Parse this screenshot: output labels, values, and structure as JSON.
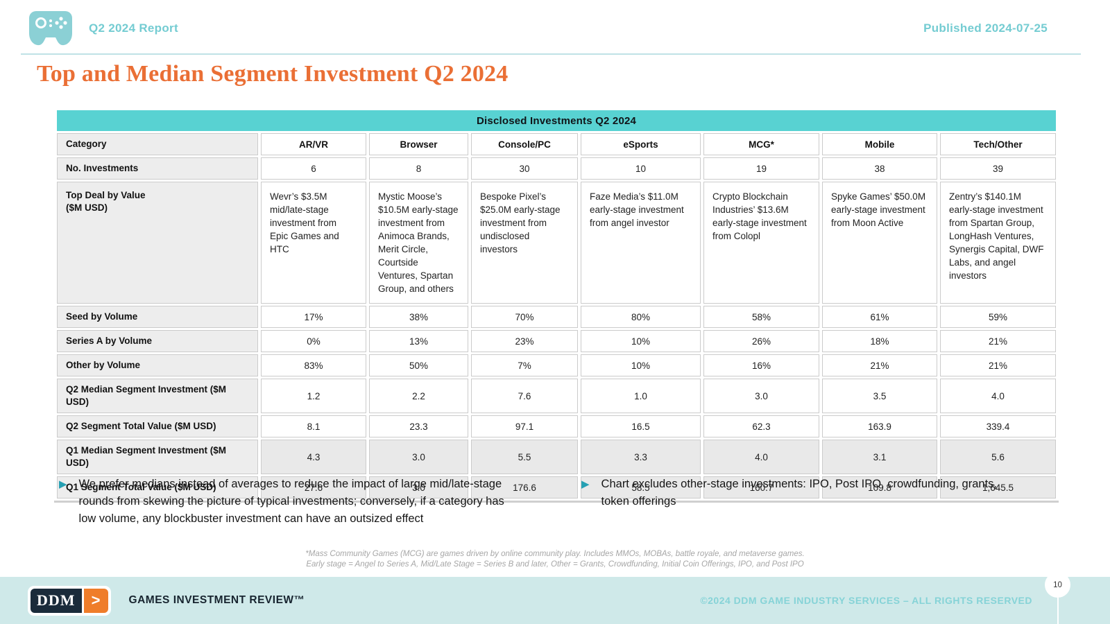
{
  "header": {
    "report_label": "Q2 2024 Report",
    "published": "Published 2024-07-25"
  },
  "page": {
    "title": "Top and Median Segment Investment Q2 2024",
    "number": "10"
  },
  "table": {
    "title": "Disclosed Investments Q2 2024",
    "category_header": "Category",
    "columns": [
      "AR/VR",
      "Browser",
      "Console/PC",
      "eSports",
      "MCG*",
      "Mobile",
      "Tech/Other"
    ],
    "rows": [
      {
        "label": "No. Investments",
        "align": "center",
        "shaded": false,
        "values": [
          "6",
          "8",
          "30",
          "10",
          "19",
          "38",
          "39"
        ]
      },
      {
        "label": "Top Deal by Value\n($M USD)",
        "align": "left",
        "shaded": false,
        "values": [
          "Wevr’s $3.5M mid/late-stage investment from Epic Games and HTC",
          "Mystic Moose’s $10.5M early-stage investment from Animoca Brands, Merit Circle, Courtside Ventures, Spartan Group, and others",
          "Bespoke Pixel’s $25.0M early-stage investment from undisclosed investors",
          "Faze Media’s $11.0M early-stage investment from angel investor",
          "Crypto Blockchain Industries’ $13.6M early-stage investment from Colopl",
          "Spyke Games’ $50.0M early-stage investment from Moon Active",
          "Zentry’s $140.1M early-stage investment from Spartan Group, LongHash Ventures, Synergis Capital, DWF Labs, and angel investors"
        ]
      },
      {
        "label": "Seed by Volume",
        "align": "center",
        "shaded": false,
        "values": [
          "17%",
          "38%",
          "70%",
          "80%",
          "58%",
          "61%",
          "59%"
        ]
      },
      {
        "label": "Series A by Volume",
        "align": "center",
        "shaded": false,
        "values": [
          "0%",
          "13%",
          "23%",
          "10%",
          "26%",
          "18%",
          "21%"
        ]
      },
      {
        "label": "Other by Volume",
        "align": "center",
        "shaded": false,
        "values": [
          "83%",
          "50%",
          "7%",
          "10%",
          "16%",
          "21%",
          "21%"
        ]
      },
      {
        "label": "Q2 Median Segment Investment ($M USD)",
        "align": "center",
        "shaded": false,
        "values": [
          "1.2",
          "2.2",
          "7.6",
          "1.0",
          "3.0",
          "3.5",
          "4.0"
        ]
      },
      {
        "label": "Q2 Segment Total Value ($M USD)",
        "align": "center",
        "shaded": false,
        "values": [
          "8.1",
          "23.3",
          "97.1",
          "16.5",
          "62.3",
          "163.9",
          "339.4"
        ]
      },
      {
        "label": "Q1 Median Segment Investment ($M USD)",
        "align": "center",
        "shaded": true,
        "values": [
          "4.3",
          "3.0",
          "5.5",
          "3.3",
          "4.0",
          "3.1",
          "5.6"
        ]
      },
      {
        "label": "Q1 Segment Total Value ($M USD)",
        "align": "center",
        "shaded": true,
        "values": [
          "27.6",
          "3.0",
          "176.6",
          "58.5",
          "160.7",
          "109.8",
          "1,645.5"
        ]
      }
    ]
  },
  "notes": [
    "We prefer medians instead of averages to reduce the impact of large mid/late-stage rounds from skewing the picture of typical investments; conversely, if a category has low volume, any blockbuster investment can have an outsized effect",
    "Chart excludes other-stage investments: IPO, Post IPO, crowdfunding, grants, token offerings"
  ],
  "footnotes": [
    "*Mass Community Games (MCG) are games driven by online community play. Includes MMOs, MOBAs, battle royale, and metaverse games.",
    "Early stage = Angel to Series A, Mid/Late Stage = Series B and later, Other = Grants, Crowdfunding, Initial Coin Offerings, IPO, and Post IPO"
  ],
  "footer": {
    "logo_text": "DDM",
    "logo_chevron": ">",
    "brand": "GAMES INVESTMENT REVIEW™",
    "copyright": "©2024 DDM GAME INDUSTRY SERVICES – ALL RIGHTS RESERVED"
  },
  "colors": {
    "accent_teal": "#74ccd2",
    "icon_teal": "#8bd0d5",
    "title_orange": "#ea6f35",
    "table_header_teal": "#58d2d2",
    "bullet_teal": "#26a0b3",
    "footer_bg": "#cfe9e9",
    "footer_copyright_teal": "#86d3d7",
    "logo_navy": "#1a2b3a",
    "logo_orange": "#ef7d2a"
  }
}
